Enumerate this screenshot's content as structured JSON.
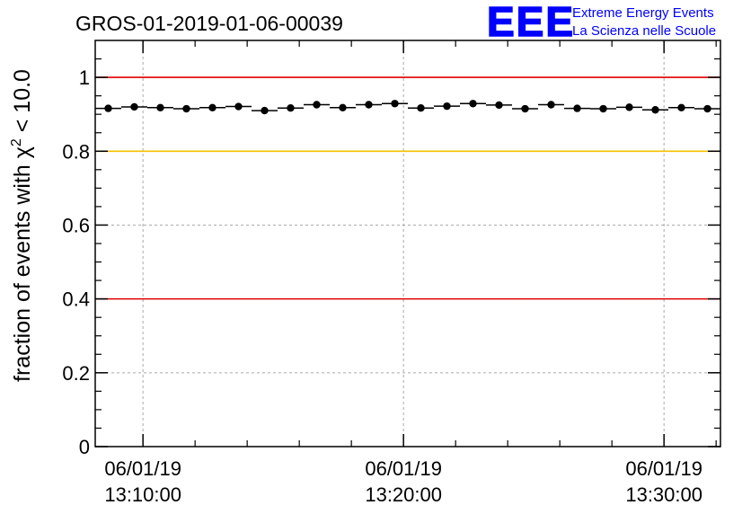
{
  "logo": {
    "text": "EEE",
    "line1": "Extreme Energy Events",
    "line2": "La Scienza nelle Scuole",
    "color": "#0000ff"
  },
  "chart_data": {
    "type": "scatter",
    "title": "GROS-01-2019-01-06-00039",
    "ylabel_prefix": "fraction of events with χ",
    "ylabel_sup": "2",
    "ylabel_suffix": " < 10.0",
    "xlabel": "",
    "xlim": [
      "06/01/19 13:08:10",
      "06/01/19 13:32:10"
    ],
    "ylim": [
      0,
      1.1
    ],
    "x_ticks": [
      {
        "x": "06/01/19 13:10:00",
        "date": "06/01/19",
        "time": "13:10:00"
      },
      {
        "x": "06/01/19 13:20:00",
        "date": "06/01/19",
        "time": "13:20:00"
      },
      {
        "x": "06/01/19 13:30:00",
        "date": "06/01/19",
        "time": "13:30:00"
      }
    ],
    "y_ticks": [
      0,
      0.2,
      0.4,
      0.6,
      0.8,
      1
    ],
    "y_tick_labels": [
      "0",
      "0.2",
      "0.4",
      "0.6",
      "0.8",
      "1"
    ],
    "grid": true,
    "reference_lines": [
      {
        "y": 1.0,
        "color": "#e00000"
      },
      {
        "y": 0.8,
        "color": "#f5c000"
      },
      {
        "y": 0.4,
        "color": "#e00000"
      }
    ],
    "series": [
      {
        "x": [
          "06/01/19 13:08:40",
          "06/01/19 13:09:40",
          "06/01/19 13:10:40",
          "06/01/19 13:11:40",
          "06/01/19 13:12:40",
          "06/01/19 13:13:40",
          "06/01/19 13:14:40",
          "06/01/19 13:15:40",
          "06/01/19 13:16:40",
          "06/01/19 13:17:40",
          "06/01/19 13:18:40",
          "06/01/19 13:19:40",
          "06/01/19 13:20:40",
          "06/01/19 13:21:40",
          "06/01/19 13:22:40",
          "06/01/19 13:23:40",
          "06/01/19 13:24:40",
          "06/01/19 13:25:40",
          "06/01/19 13:26:40",
          "06/01/19 13:27:40",
          "06/01/19 13:28:40",
          "06/01/19 13:29:40",
          "06/01/19 13:30:40",
          "06/01/19 13:31:40"
        ],
        "values": [
          0.916,
          0.92,
          0.918,
          0.915,
          0.918,
          0.921,
          0.91,
          0.917,
          0.926,
          0.918,
          0.926,
          0.929,
          0.917,
          0.922,
          0.929,
          0.925,
          0.915,
          0.926,
          0.916,
          0.915,
          0.919,
          0.912,
          0.918,
          0.915
        ],
        "color": "#000000"
      }
    ]
  }
}
